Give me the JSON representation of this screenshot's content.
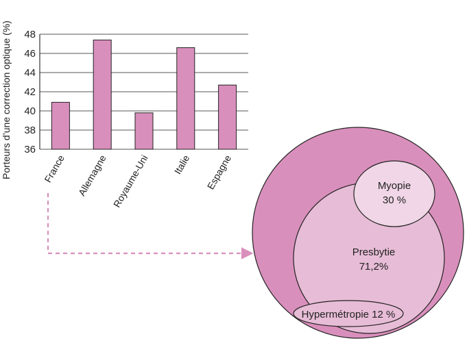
{
  "chart_data": [
    {
      "type": "bar",
      "title": "",
      "xlabel": "",
      "ylabel": "Porteurs d’une correction optique (%)",
      "categories": [
        "France",
        "Allemagne",
        "Royaume-Uni",
        "Italie",
        "Espagne"
      ],
      "values": [
        40.9,
        47.4,
        39.8,
        46.6,
        42.7
      ],
      "ylim": [
        36,
        48
      ],
      "yticks": [
        36,
        38,
        40,
        42,
        44,
        46,
        48
      ],
      "grid": true,
      "bar_color": "#d98fbc"
    },
    {
      "type": "venn",
      "regions": [
        {
          "label": "Myopie",
          "value": "30 %",
          "color": "#f0d6e6"
        },
        {
          "label": "Presbytie",
          "value": "71,2%",
          "color": "#e7bcd6"
        },
        {
          "label": "Hypermétropie",
          "value": "12 %",
          "color": "#e7bcd6"
        }
      ],
      "outer_color": "#d98fbc"
    }
  ]
}
